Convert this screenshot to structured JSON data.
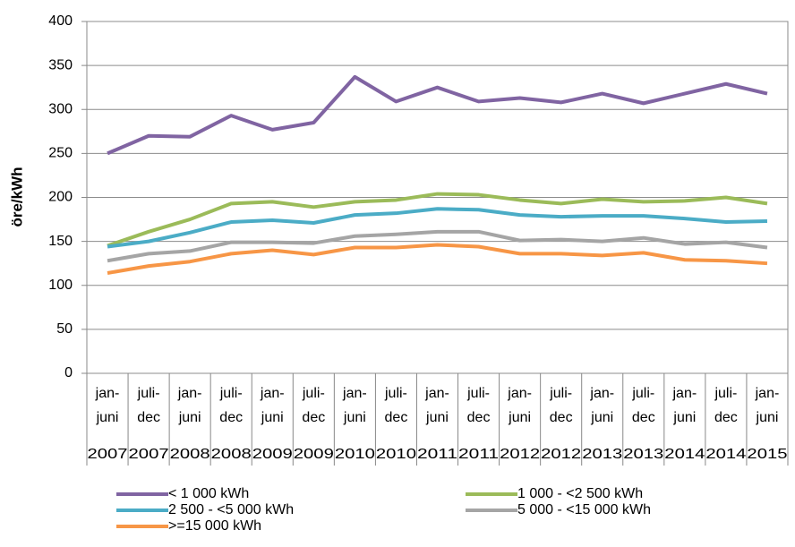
{
  "chart_data": {
    "type": "line",
    "y_label": "öre/kWh",
    "categories": [
      [
        "jan-",
        "juni"
      ],
      [
        "juli-",
        "dec"
      ],
      [
        "jan-",
        "juni"
      ],
      [
        "juli-",
        "dec"
      ],
      [
        "jan-",
        "juni"
      ],
      [
        "juli-",
        "dec"
      ],
      [
        "jan-",
        "juni"
      ],
      [
        "juli-",
        "dec"
      ],
      [
        "jan-",
        "juni"
      ],
      [
        "juli-",
        "dec"
      ],
      [
        "jan-",
        "juni"
      ],
      [
        "juli-",
        "dec"
      ],
      [
        "jan-",
        "juni"
      ],
      [
        "juli-",
        "dec"
      ],
      [
        "jan-",
        "juni"
      ],
      [
        "juli-",
        "dec"
      ],
      [
        "jan-",
        "juni"
      ]
    ],
    "years": [
      "2007",
      "2007",
      "2008",
      "2008",
      "2009",
      "2009",
      "2010",
      "2010",
      "2011",
      "2011",
      "2012",
      "2012",
      "2013",
      "2013",
      "2014",
      "2014",
      "2015"
    ],
    "series": [
      {
        "name": "< 1 000 kWh",
        "color": "#8064a2",
        "values": [
          250,
          270,
          269,
          293,
          277,
          285,
          337,
          309,
          325,
          309,
          313,
          308,
          318,
          307,
          318,
          329,
          318
        ]
      },
      {
        "name": "1 000 - <2 500 kWh",
        "color": "#9bbb59",
        "values": [
          145,
          161,
          175,
          193,
          195,
          189,
          195,
          197,
          204,
          203,
          197,
          193,
          198,
          195,
          196,
          200,
          193
        ]
      },
      {
        "name": "2 500 - <5 000 kWh",
        "color": "#4bacc6",
        "values": [
          144,
          150,
          160,
          172,
          174,
          171,
          180,
          182,
          187,
          186,
          180,
          178,
          179,
          179,
          176,
          172,
          173
        ]
      },
      {
        "name": "5 000 - <15 000 kWh",
        "color": "#a5a5a5",
        "values": [
          128,
          136,
          139,
          149,
          149,
          148,
          156,
          158,
          161,
          161,
          151,
          152,
          150,
          154,
          147,
          149,
          143
        ]
      },
      {
        "name": ">=15 000 kWh",
        "color": "#f79646",
        "values": [
          114,
          122,
          127,
          136,
          140,
          135,
          143,
          143,
          146,
          144,
          136,
          136,
          134,
          137,
          129,
          128,
          125
        ]
      }
    ],
    "ylim": [
      0,
      400
    ],
    "yticks": [
      0,
      50,
      100,
      150,
      200,
      250,
      300,
      350,
      400
    ],
    "grid": true
  }
}
